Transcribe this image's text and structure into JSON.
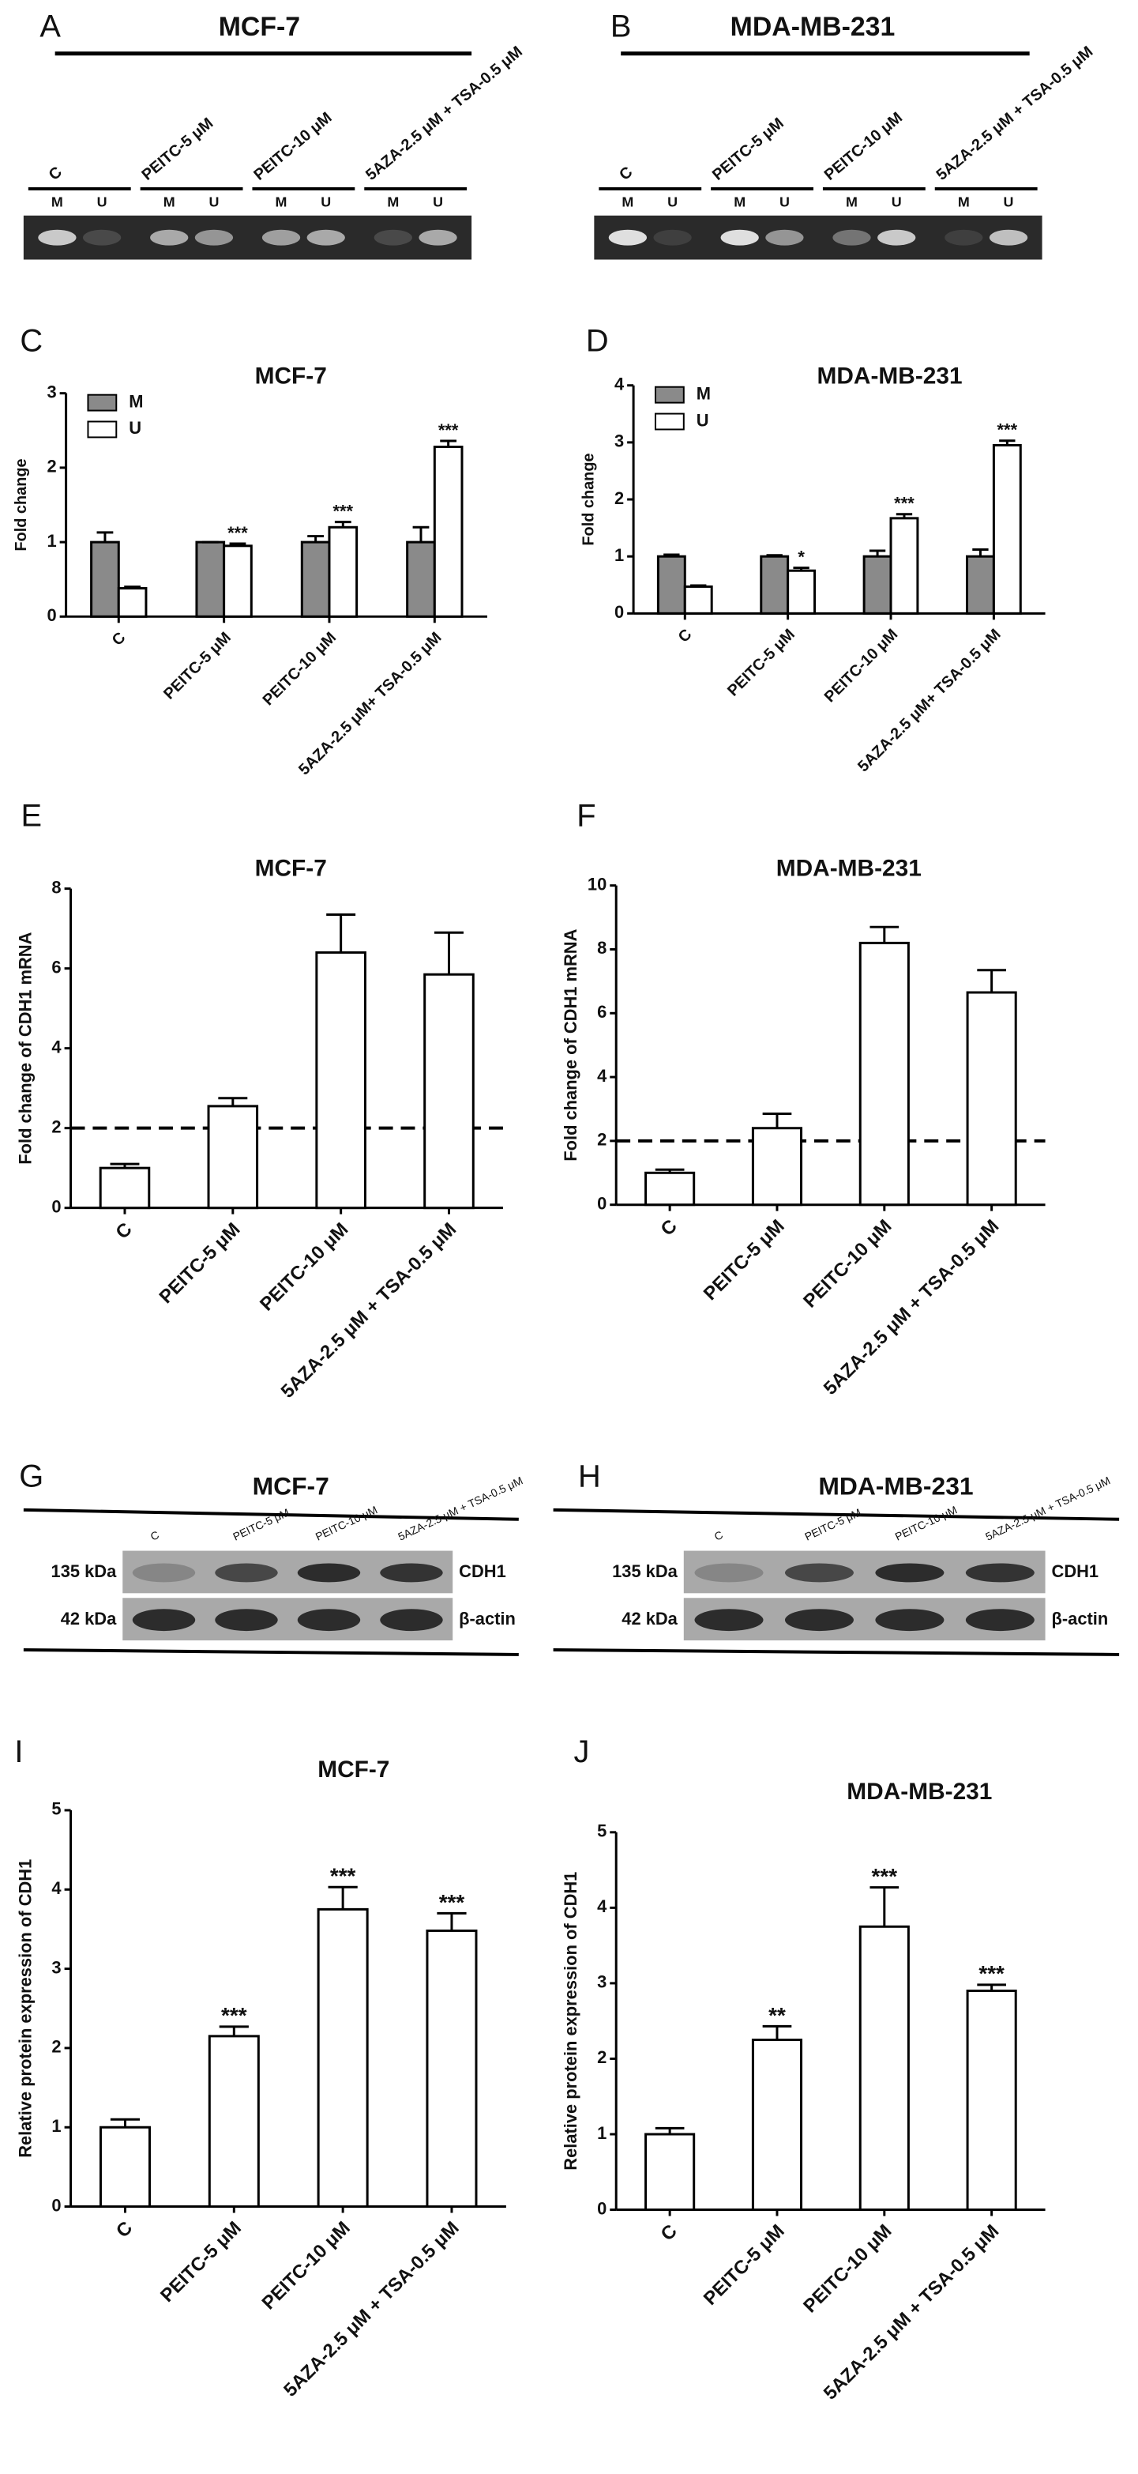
{
  "gels": [
    {
      "panel": "A",
      "title": "MCF-7",
      "lanes": [
        "C",
        "PEITC-5 μM",
        "PEITC-10 μM",
        "5AZA-2.5 μM + TSA-0.5 μM"
      ],
      "lane_labels": [
        "M",
        "U"
      ]
    },
    {
      "panel": "B",
      "title": "MDA-MB-231",
      "lanes": [
        "C",
        "PEITC-5 μM",
        "PEITC-10 μM",
        "5AZA-2.5 μM + TSA-0.5 μM"
      ],
      "lane_labels": [
        "M",
        "U"
      ]
    }
  ],
  "blots": [
    {
      "panel": "G",
      "title": "MCF-7",
      "lanes": [
        "C",
        "PEITC-5 μM",
        "PEITC-10 μM",
        "5AZA-2.5 μM + TSA-0.5 μM"
      ],
      "bands": [
        {
          "size": "135 kDa",
          "protein": "CDH1"
        },
        {
          "size": "42 kDa",
          "protein": "β-actin"
        }
      ]
    },
    {
      "panel": "H",
      "title": "MDA-MB-231",
      "lanes": [
        "C",
        "PEITC-5 μM",
        "PEITC-10 μM",
        "5AZA-2.5 μM + TSA-0.5 μM"
      ],
      "bands": [
        {
          "size": "135 kDa",
          "protein": "CDH1"
        },
        {
          "size": "42 kDa",
          "protein": "β-actin"
        }
      ]
    }
  ],
  "chart_data": [
    {
      "type": "bar",
      "panel": "C",
      "title": "MCF-7",
      "y_label": "Fold change",
      "categories": [
        "C",
        "PEITC-5 μM",
        "PEITC-10 μM",
        "5AZA-2.5 μM+ TSA-0.5 μM"
      ],
      "series": [
        {
          "name": "M",
          "color": "#8a8a8a",
          "values": [
            1.0,
            1.0,
            1.0,
            1.0
          ],
          "errors": [
            0.13,
            0.0,
            0.08,
            0.2
          ],
          "annotations": [
            null,
            null,
            null,
            null
          ]
        },
        {
          "name": "U",
          "color": "#ffffff",
          "values": [
            0.38,
            0.95,
            1.2,
            2.28
          ],
          "errors": [
            0.02,
            0.03,
            0.07,
            0.08
          ],
          "annotations": [
            null,
            "***",
            "***",
            "***"
          ]
        }
      ],
      "ylim": [
        0,
        3
      ],
      "yticks": [
        0,
        1,
        2,
        3
      ],
      "legend": "upper left"
    },
    {
      "type": "bar",
      "panel": "D",
      "title": "MDA-MB-231",
      "y_label": "Fold change",
      "categories": [
        "C",
        "PEITC-5 μM",
        "PEITC-10 μM",
        "5AZA-2.5 μM+ TSA-0.5 μM"
      ],
      "series": [
        {
          "name": "M",
          "color": "#8a8a8a",
          "values": [
            1.0,
            1.0,
            1.0,
            1.0
          ],
          "errors": [
            0.03,
            0.02,
            0.1,
            0.12
          ],
          "annotations": [
            null,
            null,
            null,
            null
          ]
        },
        {
          "name": "U",
          "color": "#ffffff",
          "values": [
            0.47,
            0.75,
            1.67,
            2.95
          ],
          "errors": [
            0.02,
            0.05,
            0.07,
            0.08
          ],
          "annotations": [
            null,
            "*",
            "***",
            "***"
          ]
        }
      ],
      "ylim": [
        0,
        4
      ],
      "yticks": [
        0,
        1,
        2,
        3,
        4
      ],
      "legend": "upper left"
    },
    {
      "type": "bar",
      "panel": "E",
      "title": "MCF-7",
      "y_label": "Fold change of CDH1 mRNA",
      "categories": [
        "C",
        "PEITC-5 μM",
        "PEITC-10 μM",
        "5AZA-2.5 μM + TSA-0.5 μM"
      ],
      "series": [
        {
          "color": "#ffffff",
          "values": [
            1.0,
            2.55,
            6.4,
            5.85
          ],
          "errors": [
            0.1,
            0.2,
            0.95,
            1.05
          ]
        }
      ],
      "ylim": [
        0,
        8
      ],
      "yticks": [
        0,
        2,
        4,
        6,
        8
      ],
      "reference_line": 2
    },
    {
      "type": "bar",
      "panel": "F",
      "title": "MDA-MB-231",
      "y_label": "Fold change of CDH1 mRNA",
      "categories": [
        "C",
        "PEITC-5 μM",
        "PEITC-10 μM",
        "5AZA-2.5 μM + TSA-0.5 μM"
      ],
      "series": [
        {
          "color": "#ffffff",
          "values": [
            1.0,
            2.4,
            8.2,
            6.65
          ],
          "errors": [
            0.1,
            0.45,
            0.5,
            0.7
          ]
        }
      ],
      "ylim": [
        0,
        10
      ],
      "yticks": [
        0,
        2,
        4,
        6,
        8,
        10
      ],
      "reference_line": 2
    },
    {
      "type": "bar",
      "panel": "I",
      "title": "MCF-7",
      "y_label": "Relative protein expression of CDH1",
      "categories": [
        "C",
        "PEITC-5 μM",
        "PEITC-10 μM",
        "5AZA-2.5 μM + TSA-0.5 μM"
      ],
      "series": [
        {
          "color": "#ffffff",
          "values": [
            1.0,
            2.15,
            3.75,
            3.48
          ],
          "errors": [
            0.1,
            0.12,
            0.28,
            0.22
          ],
          "annotations": [
            null,
            "***",
            "***",
            "***"
          ]
        }
      ],
      "ylim": [
        0,
        5
      ],
      "yticks": [
        0,
        1,
        2,
        3,
        4,
        5
      ]
    },
    {
      "type": "bar",
      "panel": "J",
      "title": "MDA-MB-231",
      "y_label": "Relative protein expression of CDH1",
      "categories": [
        "C",
        "PEITC-5 μM",
        "PEITC-10 μM",
        "5AZA-2.5 μM + TSA-0.5 μM"
      ],
      "series": [
        {
          "color": "#ffffff",
          "values": [
            1.0,
            2.25,
            3.75,
            2.9
          ],
          "errors": [
            0.08,
            0.18,
            0.52,
            0.08
          ],
          "annotations": [
            null,
            "**",
            "***",
            "***"
          ]
        }
      ],
      "ylim": [
        0,
        5
      ],
      "yticks": [
        0,
        1,
        2,
        3,
        4,
        5
      ]
    }
  ]
}
